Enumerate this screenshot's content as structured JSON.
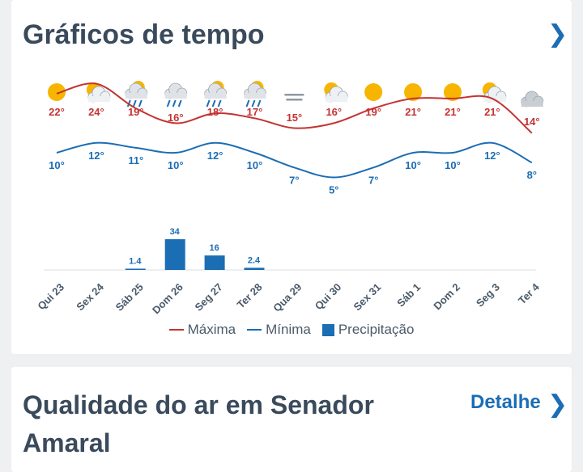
{
  "weather_card": {
    "title": "Gráficos de tempo"
  },
  "air_card": {
    "title": "Qualidade do ar em Senador Amaral",
    "detail_label": "Detalhe"
  },
  "legend": {
    "max_label": "Máxima",
    "min_label": "Mínima",
    "precip_label": "Precipitação"
  },
  "colors": {
    "max": "#c33333",
    "min": "#1b6db4",
    "precip": "#1b6db4",
    "sun": "#f7b500",
    "cloud": "#c9ced4",
    "rain": "#1b6db4"
  },
  "chart_data": {
    "type": "line",
    "days": [
      "Qui 23",
      "Sex 24",
      "Sáb 25",
      "Dom 26",
      "Seg 27",
      "Ter 28",
      "Qua 29",
      "Qui 30",
      "Sex 31",
      "Sáb 1",
      "Dom 2",
      "Seg 3",
      "Ter 4"
    ],
    "icons": [
      "sun-icon",
      "partly-cloudy-icon",
      "sun-rain-icon",
      "rain-cloud-icon",
      "sun-rain-icon",
      "sun-rain-icon",
      "fog-icon",
      "partly-cloudy-icon",
      "sun-icon",
      "sun-icon",
      "sun-icon",
      "partly-cloudy-icon",
      "cloudy-icon"
    ],
    "series": [
      {
        "name": "Máxima",
        "unit": "°",
        "values": [
          22,
          24,
          19,
          16,
          18,
          17,
          15,
          16,
          19,
          21,
          21,
          21,
          14
        ]
      },
      {
        "name": "Mínima",
        "unit": "°",
        "values": [
          10,
          12,
          11,
          10,
          12,
          10,
          7,
          5,
          7,
          10,
          10,
          12,
          8
        ]
      },
      {
        "name": "Precipitação",
        "type": "bar",
        "values": [
          null,
          null,
          1.4,
          34,
          16,
          2.4,
          null,
          null,
          null,
          null,
          null,
          null,
          null
        ]
      }
    ]
  }
}
